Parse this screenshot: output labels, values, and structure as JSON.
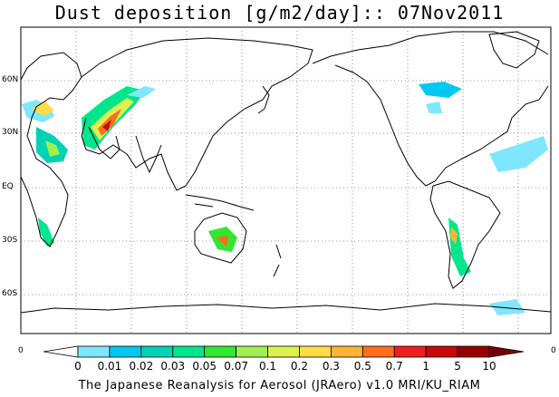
{
  "title": "Dust deposition [g/m2/day]:: 07Nov2011",
  "map": {
    "lat_labels": [
      "60N",
      "30N",
      "EQ",
      "30S",
      "60S"
    ],
    "edge_labels": [
      "0",
      "0"
    ]
  },
  "legend": {
    "ticks": [
      "0",
      "0.01",
      "0.02",
      "0.03",
      "0.05",
      "0.07",
      "0.1",
      "0.2",
      "0.3",
      "0.5",
      "0.7",
      "1",
      "5",
      "10"
    ],
    "colors": [
      "#ffffff",
      "#7fe6ff",
      "#00c8f0",
      "#00d2b4",
      "#00e68c",
      "#32e632",
      "#a0f050",
      "#dcf050",
      "#ffdc46",
      "#ffb432",
      "#ff6e1e",
      "#f01e1e",
      "#c80a0a",
      "#960000",
      "#780000"
    ]
  },
  "footer": "The Japanese Reanalysis for Aerosol (JRAero) v1.0 MRI/KU_RIAM"
}
